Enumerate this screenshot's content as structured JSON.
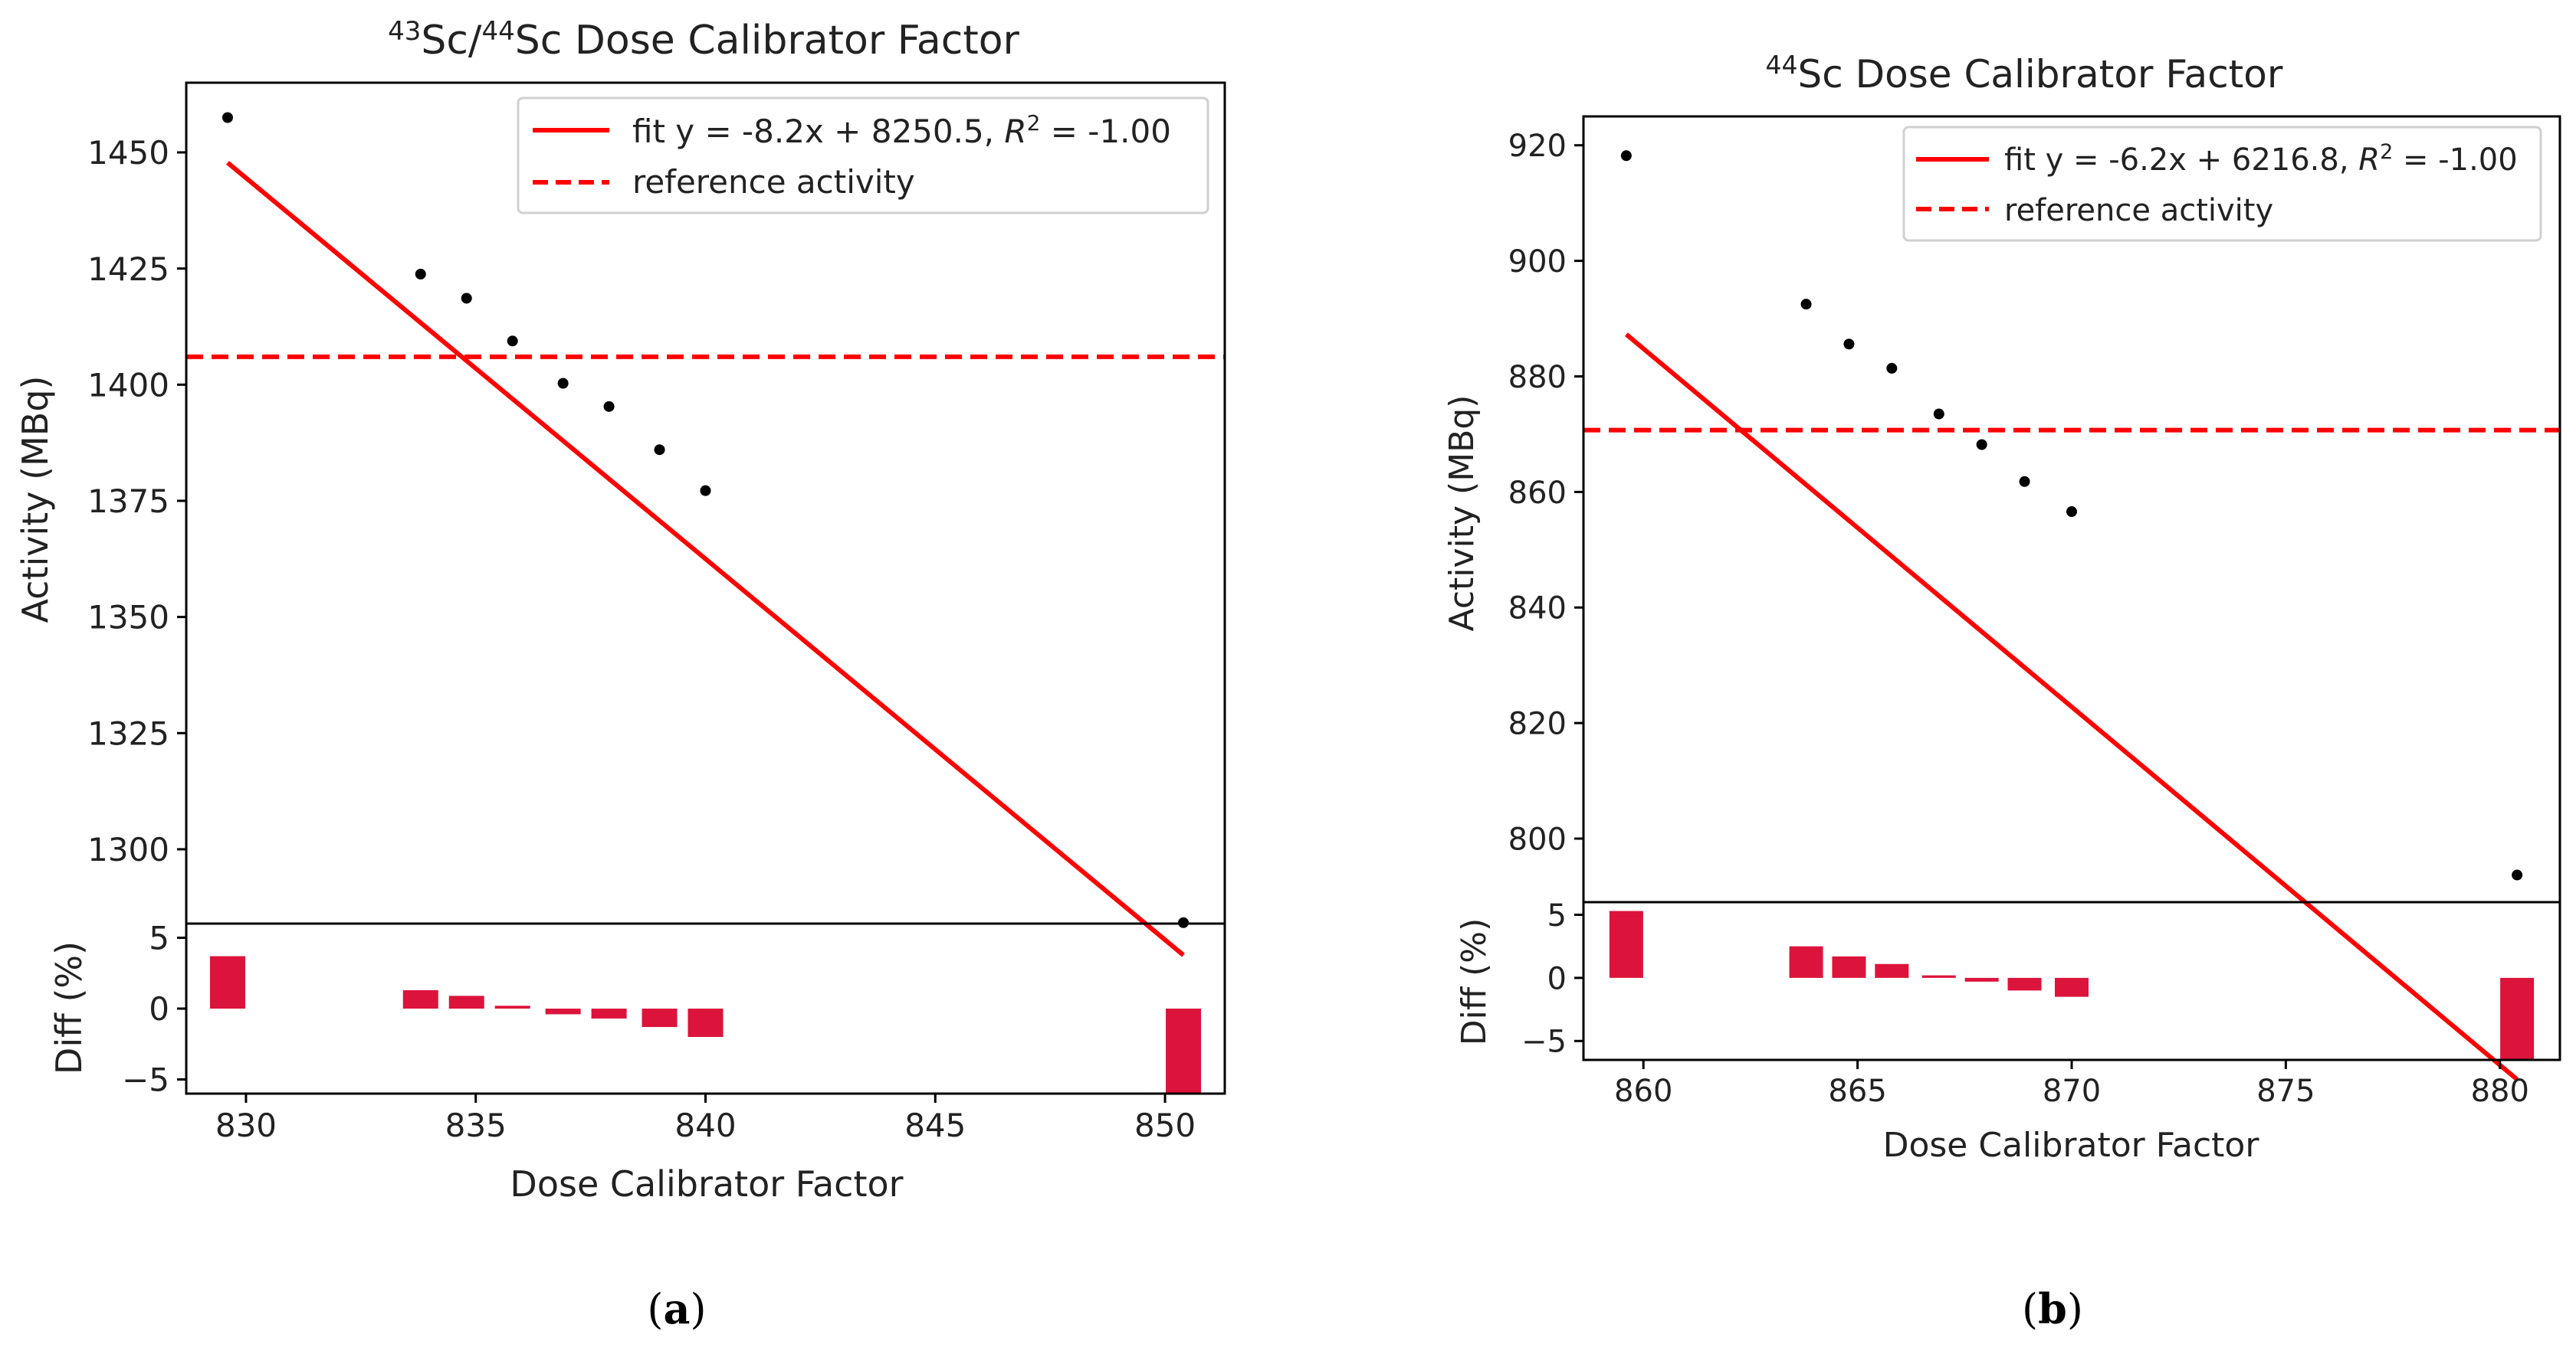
{
  "chart_data": [
    {
      "type": "scatter",
      "panel_label": "a",
      "title_prefix": "43",
      "title_mid1": "Sc/",
      "title_mid2": "44",
      "title_rest": "Sc Dose Calibrator Factor",
      "xlabel": "Dose Calibrator Factor",
      "ylabel": "Activity (MBq)",
      "diff_ylabel": "Diff (%)",
      "xlim": [
        828.7,
        851.3
      ],
      "ylim": [
        1284,
        1465
      ],
      "diff_ylim": [
        -6,
        6
      ],
      "xticks": [
        830,
        835,
        840,
        845,
        850
      ],
      "yticks": [
        1300,
        1325,
        1350,
        1375,
        1400,
        1425,
        1450
      ],
      "diff_yticks": [
        -5,
        0,
        5
      ],
      "points": {
        "x": [
          829.6,
          833.8,
          834.8,
          835.8,
          836.9,
          837.9,
          839.0,
          840.0,
          850.4
        ],
        "y": [
          1457.5,
          1423.8,
          1418.6,
          1409.4,
          1400.3,
          1395.3,
          1386.0,
          1377.2,
          1284.2
        ]
      },
      "fit": {
        "slope": -8.2,
        "intercept": 8250.5,
        "x_range": [
          829.6,
          850.4
        ],
        "label_pre": "fit y = -8.2x + 8250.5, ",
        "label_r": "R",
        "label_sup": "2",
        "label_post": " = -1.00"
      },
      "reference": {
        "value": 1406,
        "label": "reference activity"
      },
      "diff": {
        "x": [
          829.6,
          833.8,
          834.8,
          835.8,
          836.9,
          837.9,
          839.0,
          840.0,
          850.4
        ],
        "values": [
          3.7,
          1.3,
          0.9,
          0.2,
          -0.4,
          -0.7,
          -1.3,
          -2.0,
          -6.0
        ]
      }
    },
    {
      "type": "scatter",
      "panel_label": "b",
      "title_prefix": "44",
      "title_mid1": "",
      "title_mid2": "",
      "title_rest": "Sc Dose Calibrator Factor",
      "xlabel": "Dose Calibrator Factor",
      "ylabel": "Activity (MBq)",
      "diff_ylabel": "Diff (%)",
      "xlim": [
        858.6,
        881.4
      ],
      "ylim": [
        789,
        925
      ],
      "diff_ylim": [
        -6.5,
        6
      ],
      "xticks": [
        860,
        865,
        870,
        875,
        880
      ],
      "yticks": [
        800,
        820,
        840,
        860,
        880,
        900,
        920
      ],
      "diff_yticks": [
        -5,
        0,
        5
      ],
      "points": {
        "x": [
          859.6,
          863.8,
          864.8,
          865.8,
          866.9,
          867.9,
          868.9,
          870.0,
          880.4
        ],
        "y": [
          918.2,
          892.5,
          885.6,
          881.4,
          873.5,
          868.2,
          861.8,
          856.6,
          793.7
        ]
      },
      "fit": {
        "slope": -6.2,
        "intercept": 6216.8,
        "x_range": [
          859.6,
          880.4
        ],
        "label_pre": "fit y = -6.2x + 6216.8, ",
        "label_r": "R",
        "label_sup": "2",
        "label_post": " = -1.00"
      },
      "reference": {
        "value": 870.7,
        "label": "reference activity"
      },
      "diff": {
        "x": [
          859.6,
          863.8,
          864.8,
          865.8,
          866.9,
          867.9,
          868.9,
          870.0,
          880.4
        ],
        "values": [
          5.3,
          2.5,
          1.7,
          1.1,
          0.2,
          -0.3,
          -1.0,
          -1.5,
          -6.5
        ]
      }
    }
  ],
  "colors": {
    "fit": "#ff0000",
    "bars": "#dc143c",
    "points": "#000000"
  }
}
